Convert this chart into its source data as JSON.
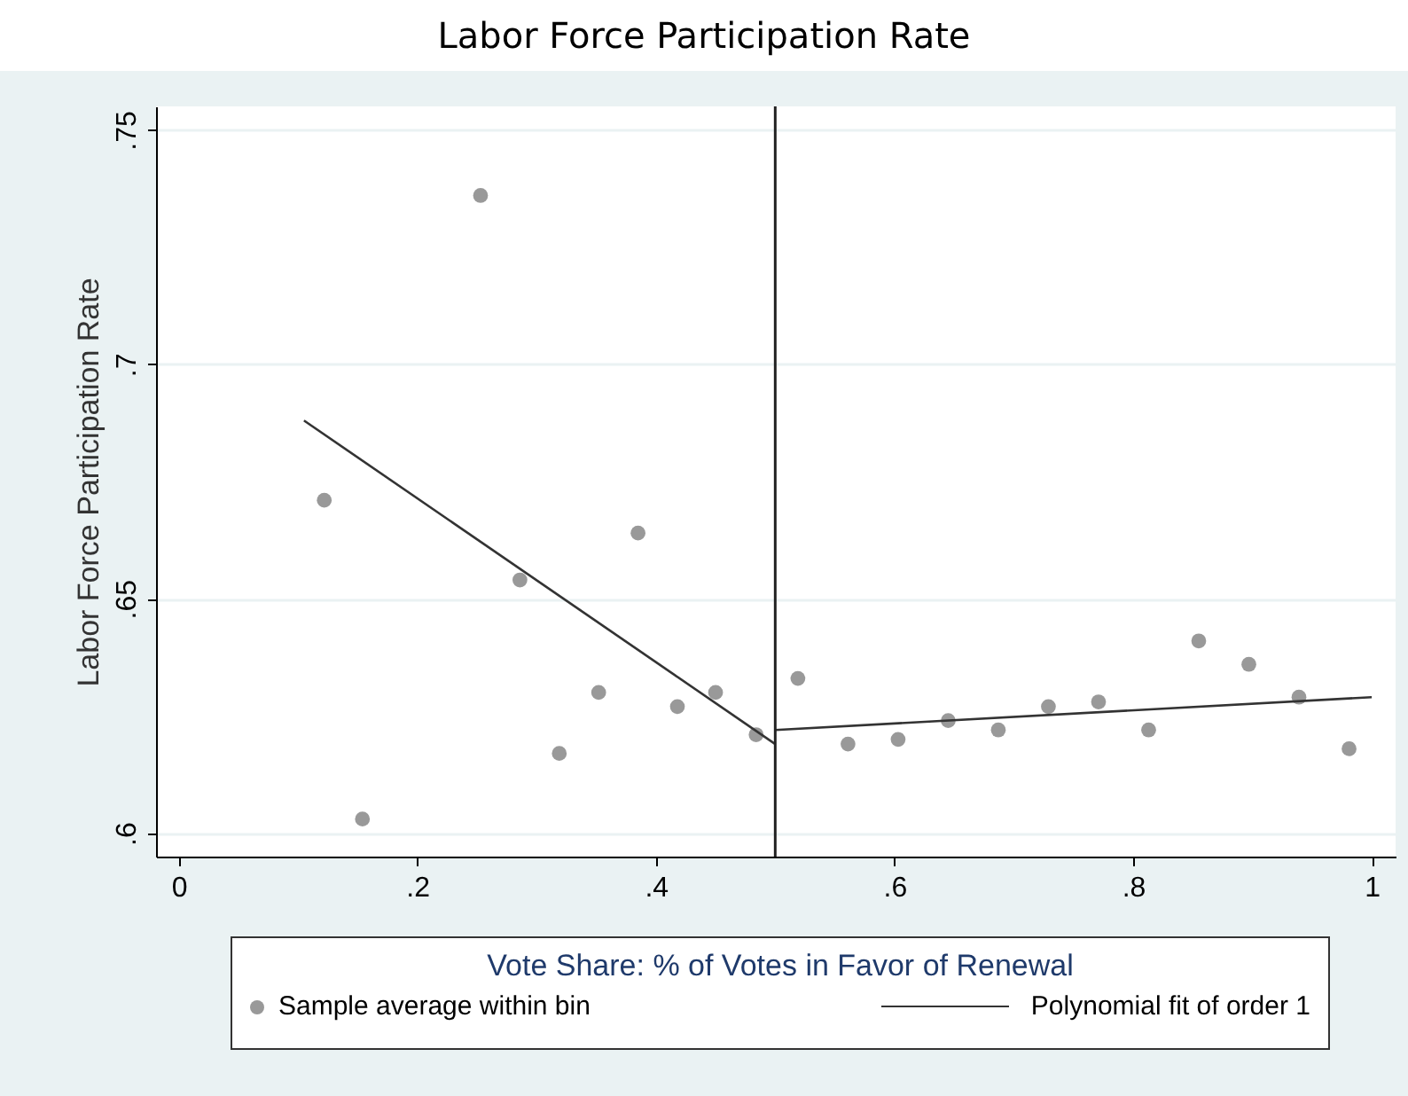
{
  "chart_data": {
    "type": "scatter",
    "title": "Labor Force Participation Rate",
    "ylabel": "Labor Force Participation Rate",
    "legend_title": "Vote Share: % of Votes in Favor of Renewal",
    "xlim": [
      -0.019,
      1.02
    ],
    "ylim": [
      0.595,
      0.755
    ],
    "xticks": [
      {
        "value": 0,
        "label": "0"
      },
      {
        "value": 0.2,
        "label": ".2"
      },
      {
        "value": 0.4,
        "label": ".4"
      },
      {
        "value": 0.6,
        "label": ".6"
      },
      {
        "value": 0.8,
        "label": ".8"
      },
      {
        "value": 1,
        "label": "1"
      }
    ],
    "yticks": [
      {
        "value": 0.6,
        "label": ".6"
      },
      {
        "value": 0.65,
        "label": ".65"
      },
      {
        "value": 0.7,
        "label": ".7"
      },
      {
        "value": 0.75,
        "label": ".75"
      }
    ],
    "grid": "y",
    "legend": "bottom",
    "ref_lines": [
      {
        "axis": "x",
        "value": 0.5,
        "color": "#222222"
      }
    ],
    "series": [
      {
        "name": "Sample average within bin",
        "marker": "circle",
        "color": "#999999",
        "x": [
          0.122,
          0.154,
          0.253,
          0.286,
          0.319,
          0.352,
          0.385,
          0.418,
          0.45,
          0.484,
          0.519,
          0.561,
          0.603,
          0.645,
          0.687,
          0.729,
          0.771,
          0.813,
          0.855,
          0.897,
          0.939,
          0.981
        ],
        "values": [
          0.671,
          0.603,
          0.736,
          0.654,
          0.617,
          0.63,
          0.664,
          0.627,
          0.63,
          0.621,
          0.633,
          0.619,
          0.62,
          0.624,
          0.622,
          0.627,
          0.628,
          0.622,
          0.641,
          0.636,
          0.629,
          0.618
        ]
      },
      {
        "name": "Polynomial fit of order 1",
        "type": "line",
        "color": "#333333",
        "x": [
          0.105,
          0.5
        ],
        "values": [
          0.688,
          0.619
        ]
      },
      {
        "type": "line",
        "color": "#333333",
        "x": [
          0.5,
          1.0
        ],
        "values": [
          0.622,
          0.629
        ]
      }
    ]
  }
}
